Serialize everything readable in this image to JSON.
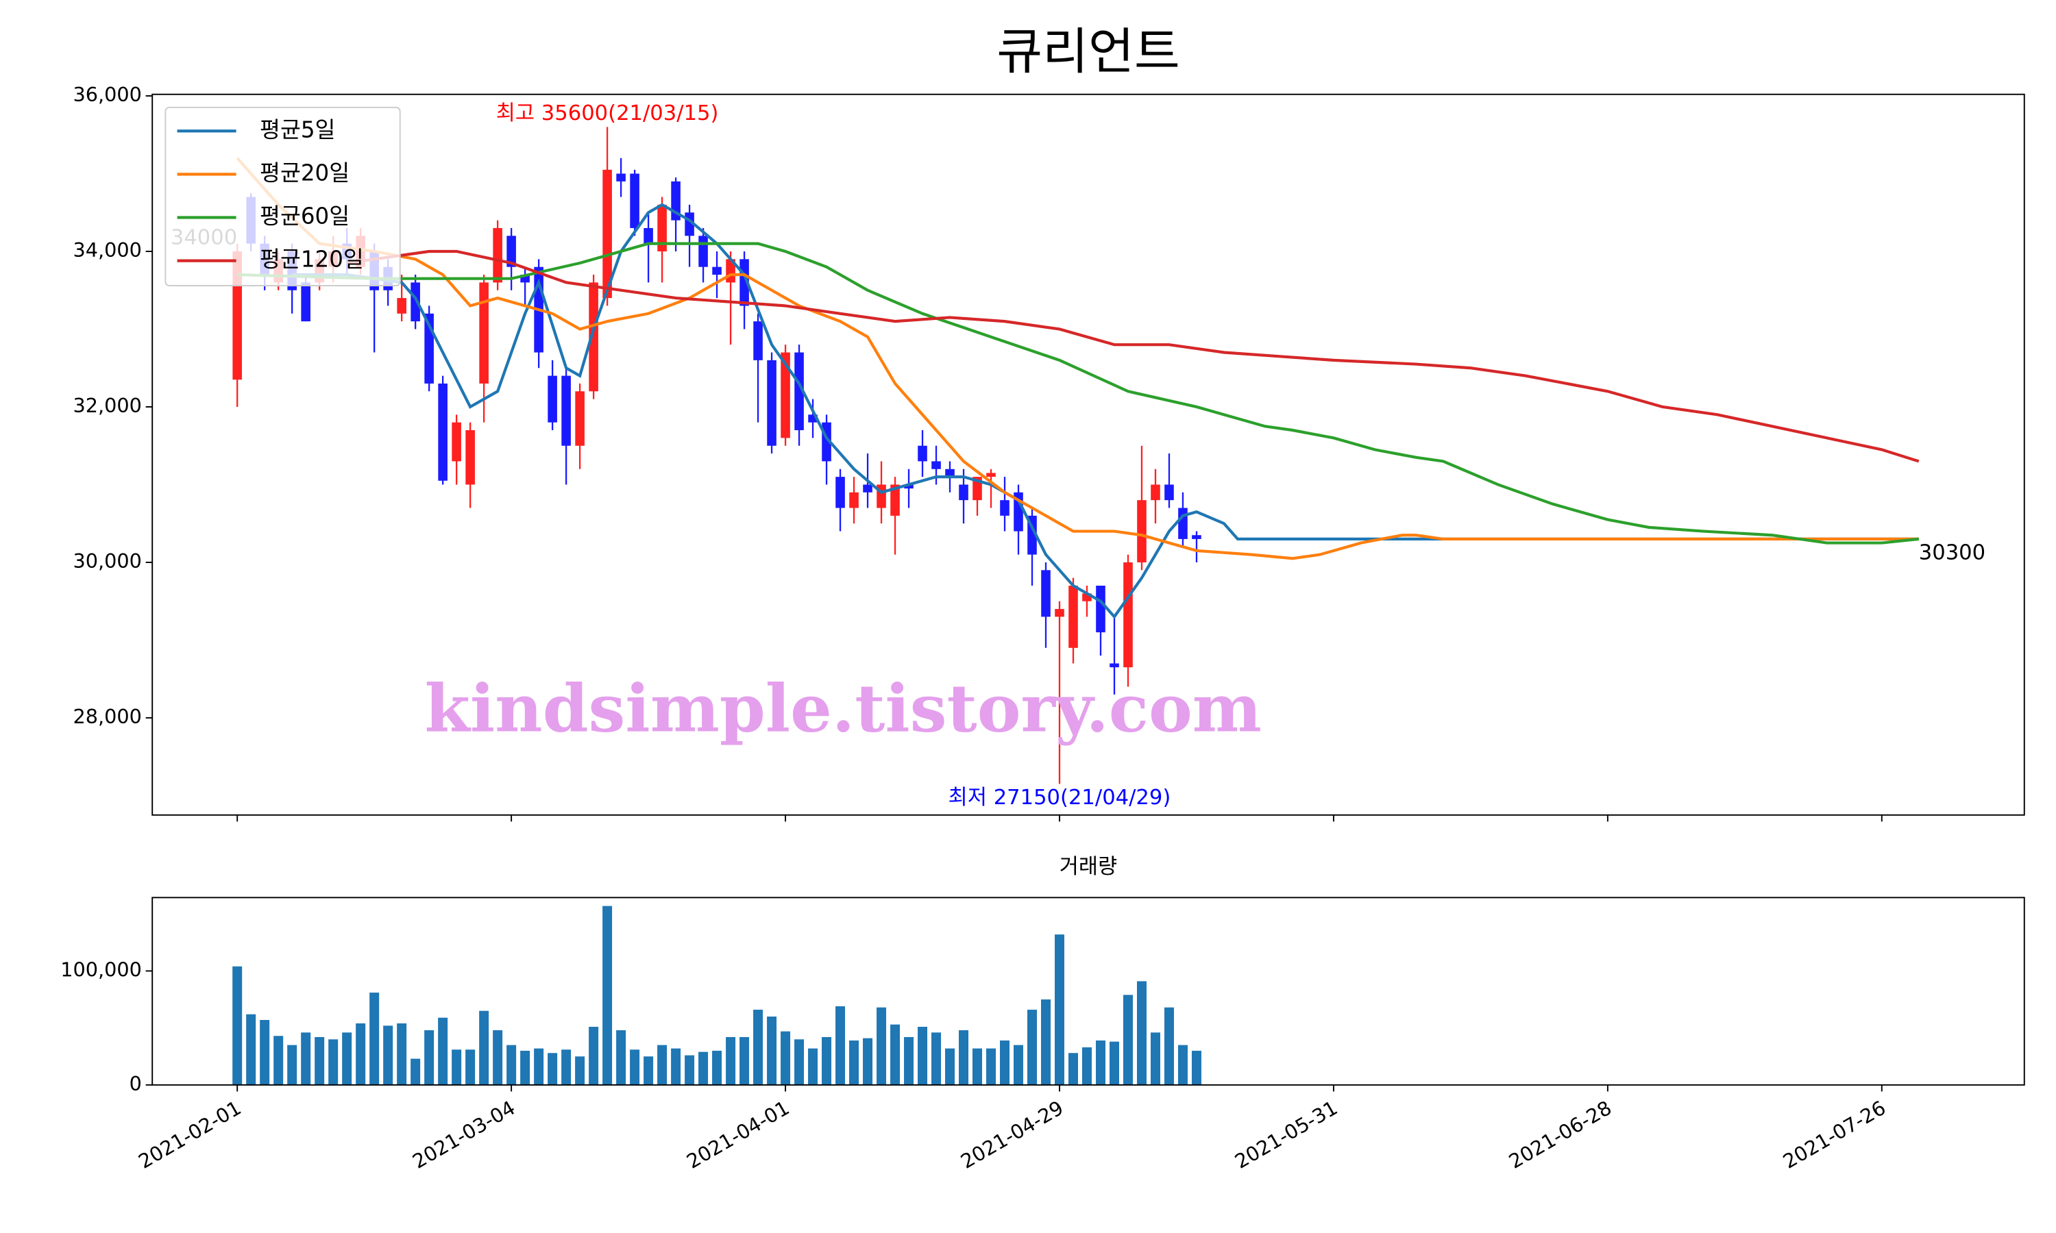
{
  "chart_data": [
    {
      "type": "candlestick",
      "title": "큐리언트",
      "watermark": "kindsimple.tistory.com",
      "xlim": [
        -6.2,
        130.4
      ],
      "ylim": [
        26750,
        36020
      ],
      "yticks": [
        {
          "value": 28000,
          "label": "28,000"
        },
        {
          "value": 30000,
          "label": "30,000"
        },
        {
          "value": 32000,
          "label": "32,000"
        },
        {
          "value": 34000,
          "label": "34,000"
        },
        {
          "value": 36000,
          "label": "36,000"
        }
      ],
      "up_color": "#ff2020",
      "down_color": "#1a1aff",
      "legend": "upper left",
      "x": [
        0,
        1,
        2,
        3,
        4,
        5,
        6,
        7,
        8,
        9,
        10,
        11,
        12,
        13,
        14,
        15,
        16,
        17,
        18,
        19,
        20,
        21,
        22,
        23,
        24,
        25,
        26,
        27,
        28,
        29,
        30,
        31,
        32,
        33,
        34,
        35,
        36,
        37,
        38,
        39,
        40,
        41,
        42,
        43,
        44,
        45,
        46,
        47,
        48,
        49,
        50,
        51,
        52,
        53,
        54,
        55,
        56,
        57,
        58,
        59,
        60,
        61,
        62,
        63,
        64,
        65,
        66,
        67,
        68,
        69,
        70
      ],
      "open": [
        32350,
        34700,
        34100,
        33600,
        34000,
        33600,
        33600,
        33800,
        34100,
        33800,
        34000,
        33800,
        33200,
        33600,
        33200,
        32300,
        31300,
        31000,
        32300,
        33600,
        34200,
        33700,
        33800,
        32400,
        32400,
        31500,
        32200,
        33400,
        35000,
        35000,
        34300,
        34000,
        34900,
        34500,
        34200,
        33800,
        33600,
        33900,
        33100,
        32600,
        31600,
        32700,
        31900,
        31800,
        31100,
        30700,
        31000,
        30700,
        30600,
        31000,
        31500,
        31300,
        31200,
        31000,
        30800,
        31100,
        30800,
        30900,
        30600,
        29900,
        29300,
        28900,
        29500,
        29700,
        28700,
        28650,
        30000,
        30800,
        31000,
        30700,
        30350
      ],
      "high": [
        34100,
        34750,
        34200,
        34000,
        34100,
        33700,
        34000,
        34200,
        34300,
        34300,
        34100,
        33900,
        33700,
        33700,
        33300,
        32400,
        31900,
        31800,
        33700,
        34400,
        34300,
        33800,
        33900,
        32600,
        32500,
        32300,
        33700,
        35600,
        35200,
        35050,
        34500,
        34700,
        34950,
        34600,
        34300,
        34000,
        34000,
        34000,
        33200,
        32700,
        32800,
        32800,
        32100,
        31900,
        31200,
        31100,
        31400,
        31300,
        31100,
        31200,
        31700,
        31500,
        31300,
        31200,
        31100,
        31200,
        31100,
        31000,
        30700,
        30000,
        29500,
        29800,
        29700,
        29700,
        29300,
        30100,
        31500,
        31200,
        31400,
        30900,
        30400
      ],
      "low": [
        32000,
        34000,
        33500,
        33500,
        33200,
        33100,
        33500,
        33600,
        33700,
        33700,
        32700,
        33300,
        33100,
        33000,
        32200,
        31000,
        31000,
        30700,
        31800,
        33500,
        33500,
        33300,
        32500,
        31700,
        31000,
        31200,
        32100,
        33300,
        34700,
        34200,
        33600,
        33600,
        34000,
        33800,
        33600,
        33400,
        32800,
        33000,
        31800,
        31400,
        31500,
        31500,
        31600,
        31000,
        30400,
        30500,
        30700,
        30500,
        30100,
        30700,
        31100,
        31000,
        30900,
        30500,
        30600,
        30700,
        30400,
        30100,
        29700,
        28900,
        27150,
        28700,
        29300,
        28800,
        28300,
        28400,
        29900,
        30500,
        30700,
        30200,
        30000
      ],
      "close": [
        34000,
        34100,
        33700,
        33900,
        33500,
        33100,
        33900,
        34000,
        33900,
        34200,
        33500,
        33500,
        33400,
        33100,
        32300,
        31050,
        31800,
        31700,
        33600,
        34300,
        33800,
        33600,
        32700,
        31800,
        31500,
        32200,
        33600,
        35050,
        34900,
        34300,
        34100,
        34600,
        34400,
        34200,
        33800,
        33700,
        33900,
        33300,
        32600,
        31500,
        32700,
        31700,
        31800,
        31300,
        30700,
        30900,
        30900,
        31000,
        31000,
        30950,
        31300,
        31200,
        31100,
        30800,
        31100,
        31150,
        30600,
        30400,
        30100,
        29300,
        29400,
        29700,
        29600,
        29100,
        28650,
        30000,
        30800,
        31000,
        30800,
        30300,
        30300
      ],
      "series": [
        {
          "name": "평균5일",
          "color": "#1f77b4",
          "x": [
            4,
            8,
            12,
            13,
            15,
            17,
            19,
            21,
            22,
            24,
            25,
            26,
            28,
            30,
            31,
            33,
            35,
            37,
            39,
            41,
            43,
            45,
            47,
            49,
            51,
            53,
            55,
            57,
            59,
            61,
            63,
            64,
            66,
            68,
            69,
            70,
            72,
            73,
            100,
            122.7
          ],
          "values": [
            33700,
            33700,
            33600,
            33400,
            32700,
            32000,
            32200,
            33200,
            33600,
            32500,
            32400,
            33000,
            34000,
            34500,
            34600,
            34400,
            34100,
            33700,
            32800,
            32300,
            31600,
            31200,
            30900,
            31000,
            31100,
            31100,
            31000,
            30800,
            30100,
            29700,
            29500,
            29300,
            29800,
            30400,
            30600,
            30650,
            30500,
            30300,
            30300,
            30300
          ]
        },
        {
          "name": "평균20일",
          "color": "#ff7f0e",
          "x": [
            0,
            3,
            6,
            10,
            13,
            15,
            17,
            19,
            21,
            23,
            25,
            27,
            30,
            33,
            36,
            37,
            39,
            41,
            44,
            46,
            48,
            50,
            53,
            56,
            59,
            61,
            64,
            66,
            70,
            74,
            77,
            79,
            82,
            85,
            86,
            88,
            95,
            122.7
          ],
          "values": [
            35200,
            34600,
            34100,
            34000,
            33900,
            33700,
            33300,
            33400,
            33300,
            33200,
            33000,
            33100,
            33200,
            33400,
            33700,
            33700,
            33500,
            33300,
            33100,
            32900,
            32300,
            31900,
            31300,
            30900,
            30600,
            30400,
            30400,
            30350,
            30150,
            30100,
            30050,
            30100,
            30250,
            30350,
            30350,
            30300,
            30300,
            30300
          ]
        },
        {
          "name": "평균60일",
          "color": "#2ca02c",
          "x": [
            0,
            10,
            20,
            25,
            30,
            34,
            38,
            40,
            43,
            46,
            50,
            55,
            60,
            65,
            70,
            75,
            77,
            80,
            83,
            86,
            88,
            92,
            96,
            100,
            103,
            107,
            112,
            116,
            120,
            122.7
          ],
          "values": [
            33700,
            33650,
            33650,
            33850,
            34100,
            34100,
            34100,
            34000,
            33800,
            33500,
            33200,
            32900,
            32600,
            32200,
            32000,
            31750,
            31700,
            31600,
            31450,
            31350,
            31300,
            31000,
            30750,
            30550,
            30450,
            30400,
            30350,
            30250,
            30250,
            30300
          ]
        },
        {
          "name": "평균120일",
          "color": "#d62728",
          "x": [
            8,
            14,
            16,
            20,
            24,
            28,
            32,
            36,
            40,
            44,
            48,
            52,
            56,
            60,
            64,
            68,
            72,
            76,
            80,
            86,
            90,
            94,
            100,
            104,
            108,
            112,
            116,
            120,
            122.7
          ],
          "values": [
            33850,
            34000,
            34000,
            33850,
            33600,
            33500,
            33400,
            33350,
            33300,
            33200,
            33100,
            33150,
            33100,
            33000,
            32800,
            32800,
            32700,
            32650,
            32600,
            32550,
            32500,
            32400,
            32200,
            32000,
            31900,
            31750,
            31600,
            31450,
            31300
          ]
        }
      ],
      "annotations": [
        {
          "text": "최고 35600(21/03/15)",
          "x": 27,
          "y": 35600,
          "color": "#ff0000",
          "anchor": "middle",
          "side": "above"
        },
        {
          "text": "최저 27150(21/04/29)",
          "x": 60,
          "y": 27150,
          "color": "#0000ff",
          "anchor": "middle",
          "side": "below"
        },
        {
          "text": "34000",
          "x": 0,
          "y": 34000,
          "color": "#444444",
          "anchor": "end",
          "side": "above"
        },
        {
          "text": "30300",
          "x": 122.7,
          "y": 30300,
          "color": "#000000",
          "anchor": "start",
          "side": "below"
        }
      ]
    },
    {
      "type": "bar",
      "title": "거래량",
      "color": "#1f77b4",
      "xlim": [
        -6.2,
        130.4
      ],
      "ylim": [
        0,
        164400
      ],
      "yticks": [
        0,
        {
          "value": 100000,
          "label": "100,000"
        }
      ],
      "xticks": [
        {
          "value": 0,
          "label": "2021-02-01"
        },
        {
          "value": 20,
          "label": "2021-03-04"
        },
        {
          "value": 40,
          "label": "2021-04-01"
        },
        {
          "value": 60,
          "label": "2021-04-29"
        },
        {
          "value": 80,
          "label": "2021-05-31"
        },
        {
          "value": 100,
          "label": "2021-06-28"
        },
        {
          "value": 120,
          "label": "2021-07-26"
        }
      ],
      "x": [
        0,
        1,
        2,
        3,
        4,
        5,
        6,
        7,
        8,
        9,
        10,
        11,
        12,
        13,
        14,
        15,
        16,
        17,
        18,
        19,
        20,
        21,
        22,
        23,
        24,
        25,
        26,
        27,
        28,
        29,
        30,
        31,
        32,
        33,
        34,
        35,
        36,
        37,
        38,
        39,
        40,
        41,
        42,
        43,
        44,
        45,
        46,
        47,
        48,
        49,
        50,
        51,
        52,
        53,
        54,
        55,
        56,
        57,
        58,
        59,
        60,
        61,
        62,
        63,
        64,
        65,
        66,
        67,
        68,
        69,
        70
      ],
      "values": [
        104000,
        62000,
        57000,
        43000,
        35000,
        46000,
        42000,
        40000,
        46000,
        54000,
        81000,
        52000,
        54000,
        23000,
        48000,
        59000,
        31000,
        31000,
        65000,
        48000,
        35000,
        30000,
        32000,
        28000,
        31000,
        25000,
        51000,
        157000,
        48000,
        31000,
        25000,
        35000,
        32000,
        26000,
        29000,
        30000,
        42000,
        42000,
        66000,
        60000,
        47000,
        40000,
        32000,
        42000,
        69000,
        39000,
        41000,
        68000,
        53000,
        42000,
        51000,
        46000,
        32000,
        48000,
        32000,
        32000,
        39000,
        35000,
        66000,
        75000,
        132000,
        28000,
        33000,
        39000,
        38000,
        79000,
        91000,
        46000,
        68000,
        35000,
        30000
      ]
    }
  ]
}
